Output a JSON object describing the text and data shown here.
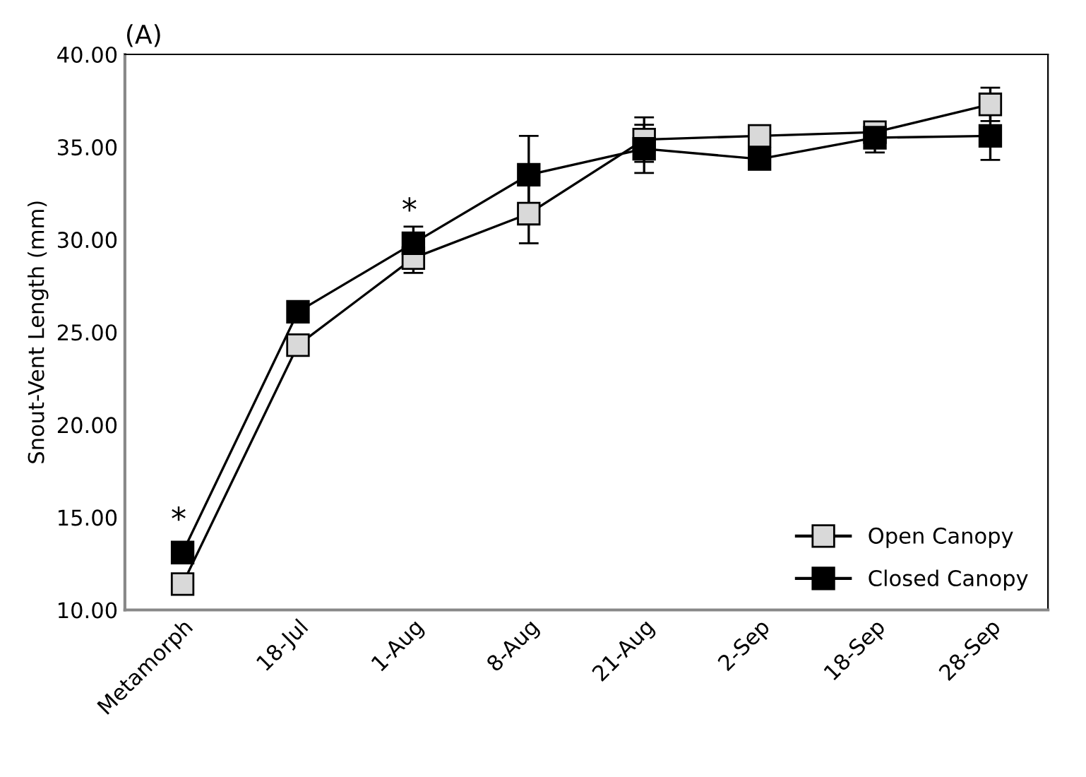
{
  "chart_data": {
    "type": "line",
    "title": "(A)",
    "ylabel": "Snout-Vent Length (mm)",
    "categories": [
      "Metamorph",
      "18-Jul",
      "1-Aug",
      "8-Aug",
      "21-Aug",
      "2-Sep",
      "18-Sep",
      "28-Sep"
    ],
    "series": [
      {
        "name": "Open Canopy",
        "color": "#d9d9d9",
        "values": [
          11.4,
          24.3,
          29.0,
          31.4,
          35.4,
          35.6,
          35.8,
          37.3
        ],
        "errors": [
          null,
          null,
          0.8,
          1.6,
          1.2,
          null,
          0.5,
          0.9
        ]
      },
      {
        "name": "Closed Canopy",
        "color": "#000000",
        "values": [
          13.1,
          26.1,
          29.8,
          33.5,
          34.9,
          34.35,
          35.5,
          35.6
        ],
        "errors": [
          null,
          null,
          0.9,
          2.1,
          1.3,
          null,
          0.8,
          1.3
        ]
      }
    ],
    "ylim": [
      10,
      40
    ],
    "yticks": [
      {
        "value": 10,
        "label": "10.00"
      },
      {
        "value": 15,
        "label": "15.00"
      },
      {
        "value": 20,
        "label": "20.00"
      },
      {
        "value": 25,
        "label": "25.00"
      },
      {
        "value": 30,
        "label": "30.00"
      },
      {
        "value": 35,
        "label": "35.00"
      },
      {
        "value": 40,
        "label": "40.00"
      }
    ],
    "annotations": [
      {
        "text": "*",
        "x": "Metamorph",
        "y": 13.1
      },
      {
        "text": "*",
        "x": "1-Aug",
        "y": 29.8
      }
    ],
    "marker": "square",
    "line_style": "solid",
    "grid": false,
    "legend": "bottom right"
  }
}
